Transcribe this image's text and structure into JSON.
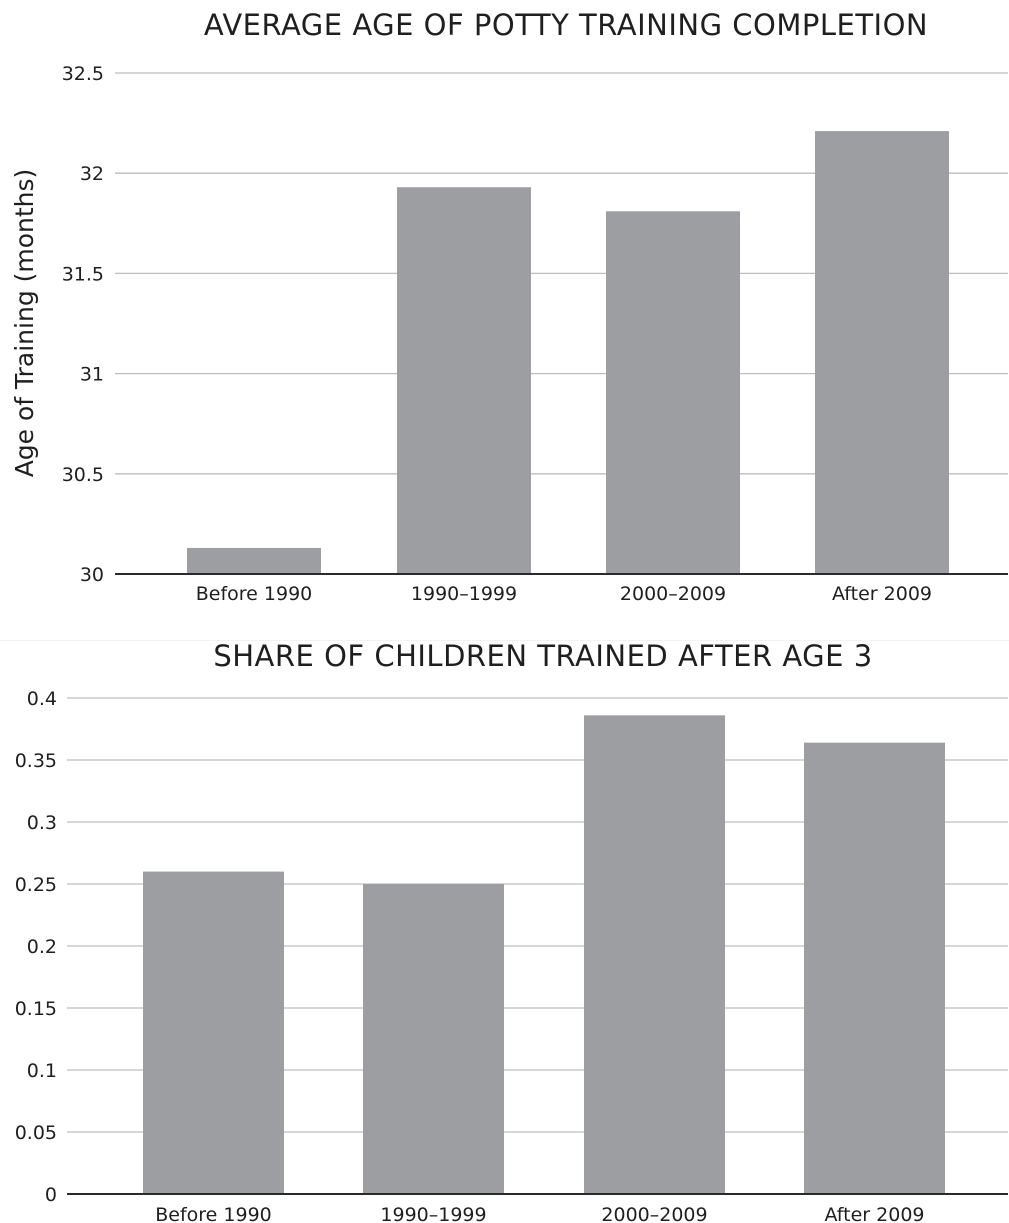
{
  "colors": {
    "bar": "#9d9ea1",
    "grid": "#bdbdbd",
    "axis": "#2a2a2a",
    "text": "#1f1f1f"
  },
  "chart_data": [
    {
      "type": "bar",
      "title": "AVERAGE AGE OF POTTY TRAINING COMPLETION",
      "xlabel": "",
      "ylabel": "Age of Training (months)",
      "categories": [
        "Before 1990",
        "1990–1999",
        "2000–2009",
        "After 2009"
      ],
      "values": [
        30.13,
        31.93,
        31.81,
        32.21
      ],
      "ylim": [
        30,
        32.5
      ],
      "yticks": [
        30,
        30.5,
        31,
        31.5,
        32,
        32.5
      ],
      "ytick_labels": [
        "30",
        "30.5",
        "31",
        "31.5",
        "32",
        "32.5"
      ],
      "grid": true,
      "legend": "none"
    },
    {
      "type": "bar",
      "title": "SHARE OF CHILDREN TRAINED AFTER AGE 3",
      "xlabel": "",
      "ylabel": "",
      "categories": [
        "Before 1990",
        "1990–1999",
        "2000–2009",
        "After 2009"
      ],
      "values": [
        0.26,
        0.25,
        0.386,
        0.364
      ],
      "ylim": [
        0,
        0.4
      ],
      "yticks": [
        0,
        0.05,
        0.1,
        0.15,
        0.2,
        0.25,
        0.3,
        0.35,
        0.4
      ],
      "ytick_labels": [
        "0",
        "0.05",
        "0.1",
        "0.15",
        "0.2",
        "0.25",
        "0.3",
        "0.35",
        "0.4"
      ],
      "grid": true,
      "legend": "none"
    }
  ]
}
